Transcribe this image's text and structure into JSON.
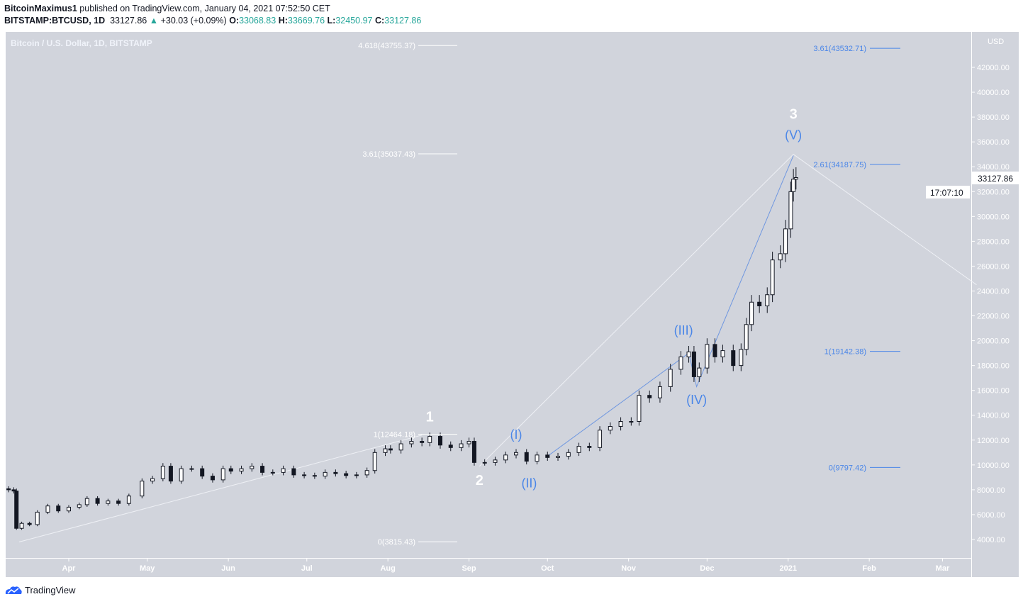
{
  "header": {
    "author": "BitcoinMaximus1",
    "published": "published on TradingView.com, January 04, 2021 07:52:50 CET",
    "symbol": "BITSTAMP:BTCUSD, 1D",
    "last": "33127.86",
    "change": "+30.03 (+0.09%)",
    "o_label": "O:",
    "o": "33068.83",
    "h_label": "H:",
    "h": "33669.76",
    "l_label": "L:",
    "l": "32450.97",
    "c_label": "C:",
    "c": "33127.86"
  },
  "footer": {
    "brand": "TradingView"
  },
  "colors": {
    "panel": "#d1d4dc",
    "accent_blue": "#4a86e8",
    "up": "#ffffff",
    "down": "#131722",
    "change_up": "#26a69a"
  },
  "chart_data": {
    "type": "candlestick",
    "title": "Bitcoin / U.S. Dollar, 1D, BITSTAMP",
    "currency": "USD",
    "last_price": "33127.86",
    "countdown": "17:07:10",
    "ylim": [
      3000,
      44500
    ],
    "xlim": [
      "2020-03-08",
      "2021-03-14"
    ],
    "y_ticks": [
      4000,
      6000,
      8000,
      10000,
      12000,
      14000,
      16000,
      18000,
      20000,
      22000,
      24000,
      26000,
      28000,
      30000,
      32000,
      34000,
      36000,
      38000,
      40000,
      42000
    ],
    "x_ticks": [
      {
        "d": "2020-04-01",
        "l": "Apr"
      },
      {
        "d": "2020-05-01",
        "l": "May"
      },
      {
        "d": "2020-06-01",
        "l": "Jun"
      },
      {
        "d": "2020-07-01",
        "l": "Jul"
      },
      {
        "d": "2020-08-01",
        "l": "Aug"
      },
      {
        "d": "2020-09-01",
        "l": "Sep"
      },
      {
        "d": "2020-10-01",
        "l": "Oct"
      },
      {
        "d": "2020-11-01",
        "l": "Nov"
      },
      {
        "d": "2020-12-01",
        "l": "Dec"
      },
      {
        "d": "2021-01-01",
        "l": "2021"
      },
      {
        "d": "2021-02-01",
        "l": "Feb"
      },
      {
        "d": "2021-03-01",
        "l": "Mar"
      }
    ],
    "closes": [
      [
        "2020-03-09",
        8000
      ],
      [
        "2020-03-11",
        7900
      ],
      [
        "2020-03-12",
        4900
      ],
      [
        "2020-03-14",
        5300
      ],
      [
        "2020-03-17",
        5200
      ],
      [
        "2020-03-20",
        6200
      ],
      [
        "2020-03-24",
        6700
      ],
      [
        "2020-03-28",
        6300
      ],
      [
        "2020-04-01",
        6600
      ],
      [
        "2020-04-05",
        6800
      ],
      [
        "2020-04-08",
        7300
      ],
      [
        "2020-04-12",
        6900
      ],
      [
        "2020-04-16",
        7100
      ],
      [
        "2020-04-20",
        6900
      ],
      [
        "2020-04-24",
        7500
      ],
      [
        "2020-04-29",
        8700
      ],
      [
        "2020-05-03",
        8900
      ],
      [
        "2020-05-07",
        9900
      ],
      [
        "2020-05-10",
        8700
      ],
      [
        "2020-05-14",
        9700
      ],
      [
        "2020-05-18",
        9700
      ],
      [
        "2020-05-22",
        9100
      ],
      [
        "2020-05-26",
        8800
      ],
      [
        "2020-05-30",
        9700
      ],
      [
        "2020-06-02",
        9500
      ],
      [
        "2020-06-06",
        9700
      ],
      [
        "2020-06-10",
        9900
      ],
      [
        "2020-06-14",
        9400
      ],
      [
        "2020-06-18",
        9400
      ],
      [
        "2020-06-22",
        9700
      ],
      [
        "2020-06-26",
        9200
      ],
      [
        "2020-06-30",
        9150
      ],
      [
        "2020-07-04",
        9100
      ],
      [
        "2020-07-08",
        9400
      ],
      [
        "2020-07-12",
        9300
      ],
      [
        "2020-07-16",
        9150
      ],
      [
        "2020-07-20",
        9200
      ],
      [
        "2020-07-24",
        9550
      ],
      [
        "2020-07-27",
        11000
      ],
      [
        "2020-07-31",
        11300
      ],
      [
        "2020-08-02",
        11200
      ],
      [
        "2020-08-06",
        11700
      ],
      [
        "2020-08-10",
        11900
      ],
      [
        "2020-08-14",
        11800
      ],
      [
        "2020-08-17",
        12300
      ],
      [
        "2020-08-21",
        11600
      ],
      [
        "2020-08-25",
        11400
      ],
      [
        "2020-08-29",
        11700
      ],
      [
        "2020-09-01",
        11900
      ],
      [
        "2020-09-03",
        10200
      ],
      [
        "2020-09-07",
        10200
      ],
      [
        "2020-09-11",
        10400
      ],
      [
        "2020-09-15",
        10800
      ],
      [
        "2020-09-19",
        11000
      ],
      [
        "2020-09-23",
        10300
      ],
      [
        "2020-09-27",
        10800
      ],
      [
        "2020-10-01",
        10600
      ],
      [
        "2020-10-05",
        10700
      ],
      [
        "2020-10-09",
        11000
      ],
      [
        "2020-10-13",
        11500
      ],
      [
        "2020-10-17",
        11400
      ],
      [
        "2020-10-21",
        12800
      ],
      [
        "2020-10-25",
        13100
      ],
      [
        "2020-10-29",
        13500
      ],
      [
        "2020-11-02",
        13500
      ],
      [
        "2020-11-05",
        15600
      ],
      [
        "2020-11-09",
        15400
      ],
      [
        "2020-11-13",
        16300
      ],
      [
        "2020-11-17",
        17700
      ],
      [
        "2020-11-21",
        18700
      ],
      [
        "2020-11-24",
        19100
      ],
      [
        "2020-11-26",
        17100
      ],
      [
        "2020-11-28",
        17800
      ],
      [
        "2020-12-01",
        19700
      ],
      [
        "2020-12-04",
        18700
      ],
      [
        "2020-12-07",
        19200
      ],
      [
        "2020-12-11",
        18000
      ],
      [
        "2020-12-14",
        19300
      ],
      [
        "2020-12-16",
        21300
      ],
      [
        "2020-12-18",
        23100
      ],
      [
        "2020-12-21",
        22800
      ],
      [
        "2020-12-24",
        23700
      ],
      [
        "2020-12-26",
        26500
      ],
      [
        "2020-12-29",
        27000
      ],
      [
        "2020-12-31",
        29000
      ],
      [
        "2021-01-02",
        32000
      ],
      [
        "2021-01-03",
        33000
      ],
      [
        "2021-01-04",
        33127.86
      ]
    ],
    "fib_left": [
      {
        "label": "4.618(43755.37)",
        "value": 43755.37
      },
      {
        "label": "3.61(35037.43)",
        "value": 35037.43
      },
      {
        "label": "1(12464.18)",
        "value": 12464.18
      },
      {
        "label": "0(3815.43)",
        "value": 3815.43
      }
    ],
    "fib_right": [
      {
        "label": "3.61(43532.71)",
        "value": 43532.71
      },
      {
        "label": "2.61(34187.75)",
        "value": 34187.75
      },
      {
        "label": "1(19142.38)",
        "value": 19142.38
      },
      {
        "label": "0(9797.42)",
        "value": 9797.42
      }
    ],
    "wave_labels_major": [
      {
        "text": "1",
        "d": "2020-08-17",
        "v": 13500
      },
      {
        "text": "2",
        "d": "2020-09-05",
        "v": 8400
      },
      {
        "text": "3",
        "d": "2021-01-03",
        "v": 37300
      }
    ],
    "wave_labels_minor": [
      {
        "text": "(I)",
        "d": "2020-09-19",
        "v": 12100
      },
      {
        "text": "(II)",
        "d": "2020-09-24",
        "v": 8200
      },
      {
        "text": "(III)",
        "d": "2020-11-22",
        "v": 20500
      },
      {
        "text": "(IV)",
        "d": "2020-11-27",
        "v": 14900
      },
      {
        "text": "(V)",
        "d": "2021-01-03",
        "v": 36200
      }
    ],
    "trend_lines_white": [
      [
        [
          "2020-03-13",
          3800
        ],
        [
          "2020-08-14",
          12400
        ]
      ],
      [
        [
          "2020-09-05",
          9900
        ],
        [
          "2021-01-03",
          35000
        ],
        [
          "2021-03-14",
          24500
        ]
      ]
    ],
    "trend_lines_blue": [
      [
        [
          "2020-10-01",
          10700
        ],
        [
          "2020-11-24",
          19000
        ],
        [
          "2020-11-27",
          16300
        ],
        [
          "2021-01-03",
          34900
        ]
      ]
    ]
  }
}
